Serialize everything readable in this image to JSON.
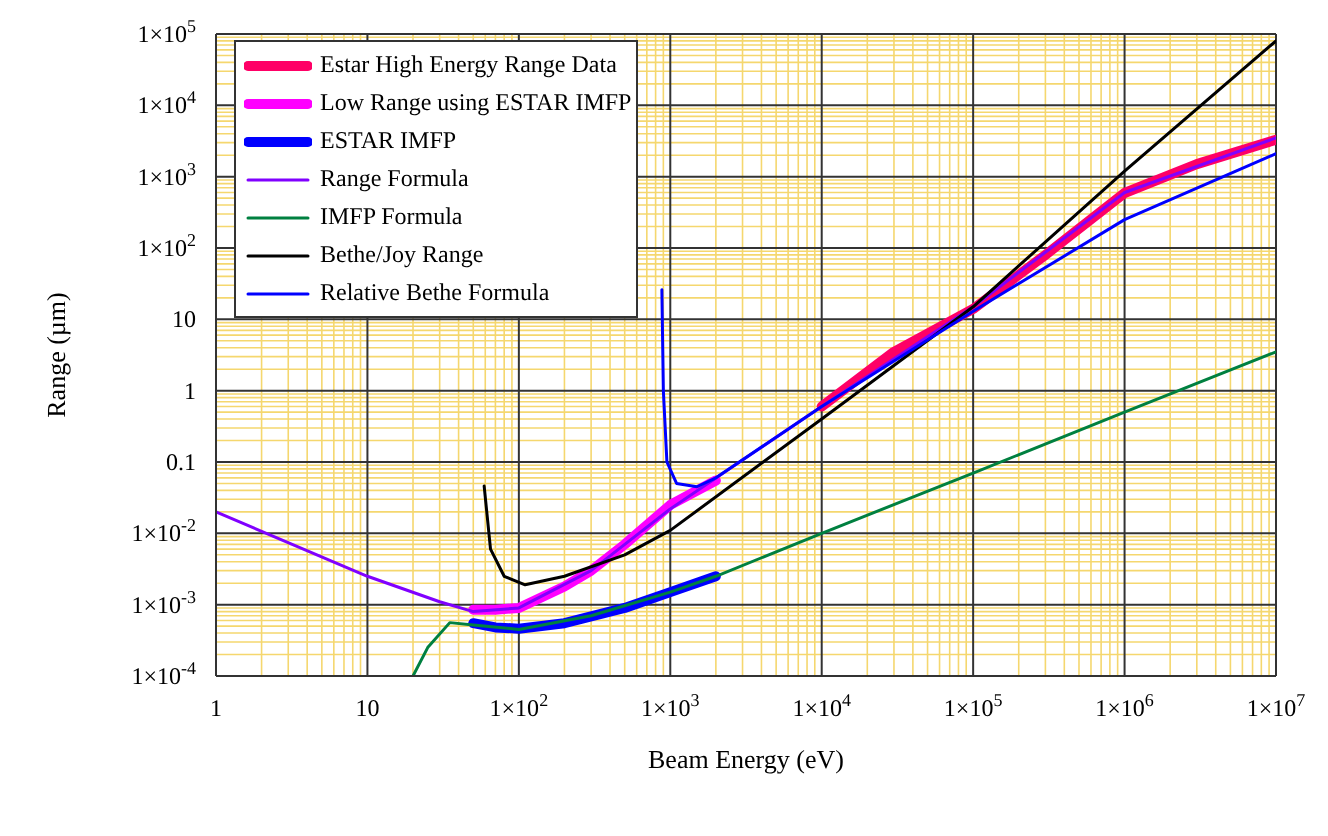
{
  "chart_data": {
    "type": "line",
    "xlabel": "Beam Energy (eV)",
    "ylabel": "Range (µm)",
    "log": "xy",
    "grid": true,
    "legend": "top left",
    "xlim": [
      1,
      10000000
    ],
    "ylim": [
      0.0001,
      100000
    ],
    "xticks": [
      1,
      {
        "value": 2,
        "label": null
      },
      {
        "value": 3,
        "label": null
      },
      {
        "value": 4,
        "label": null
      },
      {
        "value": 5,
        "label": null
      },
      {
        "value": 6,
        "label": null
      },
      {
        "value": 7,
        "label": null
      },
      {
        "value": 8,
        "label": null
      },
      {
        "value": 9,
        "label": null
      },
      10,
      {
        "value": 20,
        "label": null
      },
      {
        "value": 30,
        "label": null
      },
      {
        "value": 40,
        "label": null
      },
      {
        "value": 50,
        "label": null
      },
      {
        "value": 60,
        "label": null
      },
      {
        "value": 70,
        "label": null
      },
      {
        "value": 80,
        "label": null
      },
      {
        "value": 90,
        "label": null
      },
      {
        "value": 100,
        "label": "1×10$^{2}$"
      },
      {
        "value": 200,
        "label": null
      },
      {
        "value": 300,
        "label": null
      },
      {
        "value": 400,
        "label": null
      },
      {
        "value": 500,
        "label": null
      },
      {
        "value": 600,
        "label": null
      },
      {
        "value": 700,
        "label": null
      },
      {
        "value": 800,
        "label": null
      },
      {
        "value": 900,
        "label": null
      },
      {
        "value": 1000,
        "label": "1×10$^{3}$"
      },
      {
        "value": 2000,
        "label": null
      },
      {
        "value": 3000,
        "label": null
      },
      {
        "value": 4000,
        "label": null
      },
      {
        "value": 5000,
        "label": null
      },
      {
        "value": 6000,
        "label": null
      },
      {
        "value": 7000,
        "label": null
      },
      {
        "value": 8000,
        "label": null
      },
      {
        "value": 9000,
        "label": null
      },
      {
        "value": 10000,
        "label": "1×10$^{4}$"
      },
      {
        "value": 20000,
        "label": null
      },
      {
        "value": 30000,
        "label": null
      },
      {
        "value": 40000,
        "label": null
      },
      {
        "value": 50000,
        "label": null
      },
      {
        "value": 60000,
        "label": null
      },
      {
        "value": 70000,
        "label": null
      },
      {
        "value": 80000,
        "label": null
      },
      {
        "value": 90000,
        "label": null
      },
      {
        "value": 100000,
        "label": "1×10$^{5}$"
      },
      {
        "value": 200000,
        "label": null
      },
      {
        "value": 300000,
        "label": null
      },
      {
        "value": 400000,
        "label": null
      },
      {
        "value": 500000,
        "label": null
      },
      {
        "value": 600000,
        "label": null
      },
      {
        "value": 700000,
        "label": null
      },
      {
        "value": 800000,
        "label": null
      },
      {
        "value": 900000,
        "label": null
      },
      {
        "value": 1000000,
        "label": "1×10$^{6}$"
      },
      {
        "value": 2000000,
        "label": null
      },
      {
        "value": 3000000,
        "label": null
      },
      {
        "value": 4000000,
        "label": null
      },
      {
        "value": 5000000,
        "label": null
      },
      {
        "value": 6000000,
        "label": null
      },
      {
        "value": 7000000,
        "label": null
      },
      {
        "value": 8000000,
        "label": null
      },
      {
        "value": 9000000,
        "label": null
      },
      {
        "value": 10000000,
        "label": "1×10$^{7}$"
      }
    ],
    "yticks": [
      {
        "value": 0.0001,
        "label": "1×10$^{-4}$"
      },
      {
        "value": 0.0002,
        "label": null
      },
      {
        "value": 0.0003,
        "label": null
      },
      {
        "value": 0.0004,
        "label": null
      },
      {
        "value": 0.0005,
        "label": null
      },
      {
        "value": 0.0006,
        "label": null
      },
      {
        "value": 0.0007,
        "label": null
      },
      {
        "value": 0.0008,
        "label": null
      },
      {
        "value": 0.0009,
        "label": null
      },
      {
        "value": 0.001,
        "label": "1×10$^{-3}$"
      },
      {
        "value": 0.002,
        "label": null
      },
      {
        "value": 0.003,
        "label": null
      },
      {
        "value": 0.004,
        "label": null
      },
      {
        "value": 0.005,
        "label": null
      },
      {
        "value": 0.006,
        "label": null
      },
      {
        "value": 0.007,
        "label": null
      },
      {
        "value": 0.008,
        "label": null
      },
      {
        "value": 0.009,
        "label": null
      },
      {
        "value": 0.01,
        "label": "1×10$^{-2}$"
      },
      {
        "value": 0.02,
        "label": null
      },
      {
        "value": 0.03,
        "label": null
      },
      {
        "value": 0.04,
        "label": null
      },
      {
        "value": 0.05,
        "label": null
      },
      {
        "value": 0.06,
        "label": null
      },
      {
        "value": 0.07,
        "label": null
      },
      {
        "value": 0.08,
        "label": null
      },
      {
        "value": 0.09,
        "label": null
      },
      0.1,
      {
        "value": 0.2,
        "label": null
      },
      {
        "value": 0.3,
        "label": null
      },
      {
        "value": 0.4,
        "label": null
      },
      {
        "value": 0.5,
        "label": null
      },
      {
        "value": 0.6,
        "label": null
      },
      {
        "value": 0.7,
        "label": null
      },
      {
        "value": 0.8,
        "label": null
      },
      {
        "value": 0.9,
        "label": null
      },
      1,
      {
        "value": 2,
        "label": null
      },
      {
        "value": 3,
        "label": null
      },
      {
        "value": 4,
        "label": null
      },
      {
        "value": 5,
        "label": null
      },
      {
        "value": 6,
        "label": null
      },
      {
        "value": 7,
        "label": null
      },
      {
        "value": 8,
        "label": null
      },
      {
        "value": 9,
        "label": null
      },
      10,
      {
        "value": 20,
        "label": null
      },
      {
        "value": 30,
        "label": null
      },
      {
        "value": 40,
        "label": null
      },
      {
        "value": 50,
        "label": null
      },
      {
        "value": 60,
        "label": null
      },
      {
        "value": 70,
        "label": null
      },
      {
        "value": 80,
        "label": null
      },
      {
        "value": 90,
        "label": null
      },
      {
        "value": 100,
        "label": "1×10$^{2}$"
      },
      {
        "value": 200,
        "label": null
      },
      {
        "value": 300,
        "label": null
      },
      {
        "value": 400,
        "label": null
      },
      {
        "value": 500,
        "label": null
      },
      {
        "value": 600,
        "label": null
      },
      {
        "value": 700,
        "label": null
      },
      {
        "value": 800,
        "label": null
      },
      {
        "value": 900,
        "label": null
      },
      {
        "value": 1000,
        "label": "1×10$^{3}$"
      },
      {
        "value": 2000,
        "label": null
      },
      {
        "value": 3000,
        "label": null
      },
      {
        "value": 4000,
        "label": null
      },
      {
        "value": 5000,
        "label": null
      },
      {
        "value": 6000,
        "label": null
      },
      {
        "value": 7000,
        "label": null
      },
      {
        "value": 8000,
        "label": null
      },
      {
        "value": 9000,
        "label": null
      },
      {
        "value": 10000,
        "label": "1×10$^{4}$"
      },
      {
        "value": 20000,
        "label": null
      },
      {
        "value": 30000,
        "label": null
      },
      {
        "value": 40000,
        "label": null
      },
      {
        "value": 50000,
        "label": null
      },
      {
        "value": 60000,
        "label": null
      },
      {
        "value": 70000,
        "label": null
      },
      {
        "value": 80000,
        "label": null
      },
      {
        "value": 90000,
        "label": null
      },
      {
        "value": 100000,
        "label": "1×10$^{5}$"
      }
    ],
    "series": [
      {
        "name": "Estar High Energy Range Data",
        "color": "#ff0066",
        "x": [
          10000,
          30000,
          100000,
          300000,
          1000000,
          3000000,
          10000000
        ],
        "values": [
          0.6,
          3.5,
          14,
          80,
          590,
          1500,
          3300
        ]
      },
      {
        "name": "Low Range using ESTAR IMFP",
        "color": "#ff00ff",
        "x": [
          50,
          70,
          100,
          200,
          300,
          500,
          1000,
          2000
        ],
        "values": [
          0.00085,
          0.00085,
          0.0009,
          0.0018,
          0.003,
          0.007,
          0.025,
          0.055
        ]
      },
      {
        "name": "ESTAR IMFP",
        "color": "#0000ff",
        "x": [
          50,
          70,
          100,
          200,
          500,
          1000,
          2000
        ],
        "values": [
          0.00055,
          0.00048,
          0.00046,
          0.00055,
          0.0009,
          0.0015,
          0.0025
        ]
      },
      {
        "name": "Range Formula",
        "color": "#8000ff",
        "x": [
          1,
          10,
          30,
          50,
          100,
          300,
          1000,
          10000,
          100000,
          1000000,
          10000000
        ],
        "values": [
          0.02,
          0.0025,
          0.0011,
          0.0008,
          0.0009,
          0.003,
          0.022,
          0.6,
          15,
          600,
          3500
        ]
      },
      {
        "name": "IMFP Formula",
        "color": "#008040",
        "x": [
          20,
          25,
          35,
          50,
          100,
          300,
          1000,
          2000,
          10000,
          100000,
          1000000,
          10000000
        ],
        "values": [
          0.0001,
          0.00025,
          0.00056,
          0.00052,
          0.00045,
          0.0007,
          0.0015,
          0.0025,
          0.01,
          0.07,
          0.5,
          3.5
        ]
      },
      {
        "name": "Bethe/Joy Range",
        "color": "#000000",
        "x": [
          59,
          65,
          80,
          110,
          200,
          500,
          1000,
          10000,
          100000,
          1000000,
          10000000
        ],
        "values": [
          0.046,
          0.006,
          0.0025,
          0.0019,
          0.0025,
          0.005,
          0.011,
          0.4,
          15,
          1200,
          80000
        ]
      },
      {
        "name": "Relative Bethe Formula",
        "color": "#0000ff",
        "x": [
          880,
          900,
          950,
          1100,
          1500,
          2000,
          10000,
          100000,
          1000000,
          10000000
        ],
        "values": [
          26,
          1,
          0.1,
          0.05,
          0.045,
          0.06,
          0.6,
          13,
          250,
          2100
        ]
      }
    ]
  }
}
